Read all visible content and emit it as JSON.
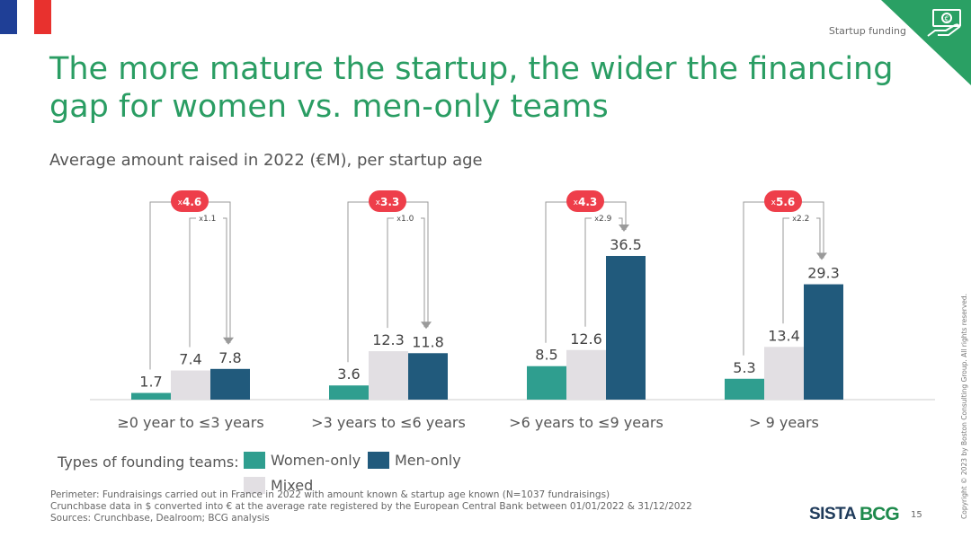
{
  "header": {
    "section_label": "Startup funding",
    "title": "The more mature the startup, the wider the financing gap for women vs. men-only teams",
    "subtitle": "Average amount raised in 2022 (€M), per startup age"
  },
  "chart_data": {
    "type": "bar",
    "title": "",
    "categories": [
      "≥0 year to ≤3 years",
      ">3 years to ≤6 years",
      ">6 years to ≤9 years",
      "> 9 years"
    ],
    "series": [
      {
        "name": "Women-only",
        "color": "#2f9e8f",
        "values": [
          1.7,
          3.6,
          8.5,
          5.3
        ]
      },
      {
        "name": "Mixed",
        "color": "#e2dfe3",
        "values": [
          7.4,
          12.3,
          12.6,
          13.4
        ]
      },
      {
        "name": "Men-only",
        "color": "#215a7c",
        "values": [
          7.8,
          11.8,
          36.5,
          29.3
        ]
      }
    ],
    "value_labels": [
      [
        "1.7",
        "7.4",
        "7.8"
      ],
      [
        "3.6",
        "12.3",
        "11.8"
      ],
      [
        "8.5",
        "12.6",
        "36.5"
      ],
      [
        "5.3",
        "13.4",
        "29.3"
      ]
    ],
    "ratio_women_vs_men": [
      {
        "prefix": "x",
        "value": "4.6"
      },
      {
        "prefix": "x",
        "value": "3.3"
      },
      {
        "prefix": "x",
        "value": "4.3"
      },
      {
        "prefix": "x",
        "value": "5.6"
      }
    ],
    "ratio_mixed_vs_men": [
      {
        "prefix": "x",
        "value": "1.1"
      },
      {
        "prefix": "x",
        "value": "1.0"
      },
      {
        "prefix": "x",
        "value": "2.9"
      },
      {
        "prefix": "x",
        "value": "2.2"
      }
    ],
    "ylim": [
      0,
      36.5
    ],
    "grid": false,
    "legend_position": "bottom-left",
    "ratio_badge_color": "#ee3e4a"
  },
  "legend": {
    "title": "Types of founding teams:",
    "items": [
      "Women-only",
      "Men-only",
      "Mixed"
    ]
  },
  "footnotes": [
    "Perimeter: Fundraisings carried out in France in 2022 with amount known & startup age known (N=1037 fundraisings)",
    "Crunchbase data in $ converted into € at the average rate registered by the European Central Bank between 01/01/2022 & 31/12/2022",
    "Sources: Crunchbase, Dealroom; BCG analysis"
  ],
  "footer": {
    "logo_sista": "SISTA",
    "logo_bcg": "BCG",
    "page_number": "15",
    "copyright": "Copyright © 2023 by Boston Consulting Group. All rights reserved."
  },
  "icons": {
    "flag": "french-flag-icon",
    "corner": "money-hand-icon"
  }
}
